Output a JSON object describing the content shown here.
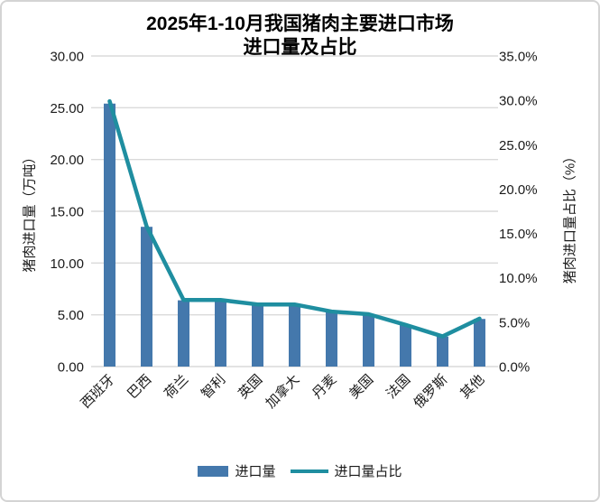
{
  "chart_data": {
    "type": "bar",
    "combo": "bar+line",
    "title": "2025年1-10月我国猪肉主要进口市场进口量及占比",
    "title_lines": [
      "2025年1-10月我国猪肉主要进口市场",
      "进口量及占比"
    ],
    "categories": [
      "西班牙",
      "巴西",
      "荷兰",
      "智利",
      "英国",
      "加拿大",
      "丹麦",
      "美国",
      "法国",
      "俄罗斯",
      "其他"
    ],
    "series": [
      {
        "name": "进口量",
        "type": "bar",
        "axis": "left",
        "unit": "万吨",
        "color": "#4478ac",
        "values": [
          25.4,
          13.5,
          6.4,
          6.4,
          6.0,
          6.0,
          5.3,
          5.0,
          4.0,
          2.9,
          4.6
        ]
      },
      {
        "name": "进口量占比",
        "type": "line",
        "axis": "right",
        "unit": "%",
        "color": "#1f8ea0",
        "values": [
          29.9,
          15.8,
          7.5,
          7.5,
          7.0,
          7.0,
          6.2,
          5.9,
          4.7,
          3.4,
          5.4
        ]
      }
    ],
    "xlabel": "",
    "ylabel_left": "猪肉进口量（万吨）",
    "ylabel_right": "猪肉进口量占比（%）",
    "y_left": {
      "min": 0,
      "max": 30,
      "step": 5,
      "tick_labels": [
        "0.00",
        "5.00",
        "10.00",
        "15.00",
        "20.00",
        "25.00",
        "30.00"
      ]
    },
    "y_right": {
      "min": 0,
      "max": 35,
      "step": 5,
      "tick_labels": [
        "0.0%",
        "5.0%",
        "10.0%",
        "15.0%",
        "20.0%",
        "25.0%",
        "30.0%",
        "35.0%"
      ]
    },
    "grid": true,
    "x_tick_rotation": -45,
    "legend_position": "bottom"
  },
  "legend": {
    "items": [
      {
        "label": "进口量",
        "swatch": "bar",
        "color": "#4478ac"
      },
      {
        "label": "进口量占比",
        "swatch": "line",
        "color": "#1f8ea0"
      }
    ]
  },
  "colors": {
    "bar": "#4478ac",
    "line": "#1f8ea0",
    "grid": "#dadada",
    "tick_text": "#1a1a1a",
    "title_text": "#000000",
    "frame_border": "#d4d4d4",
    "background": "#ffffff"
  }
}
